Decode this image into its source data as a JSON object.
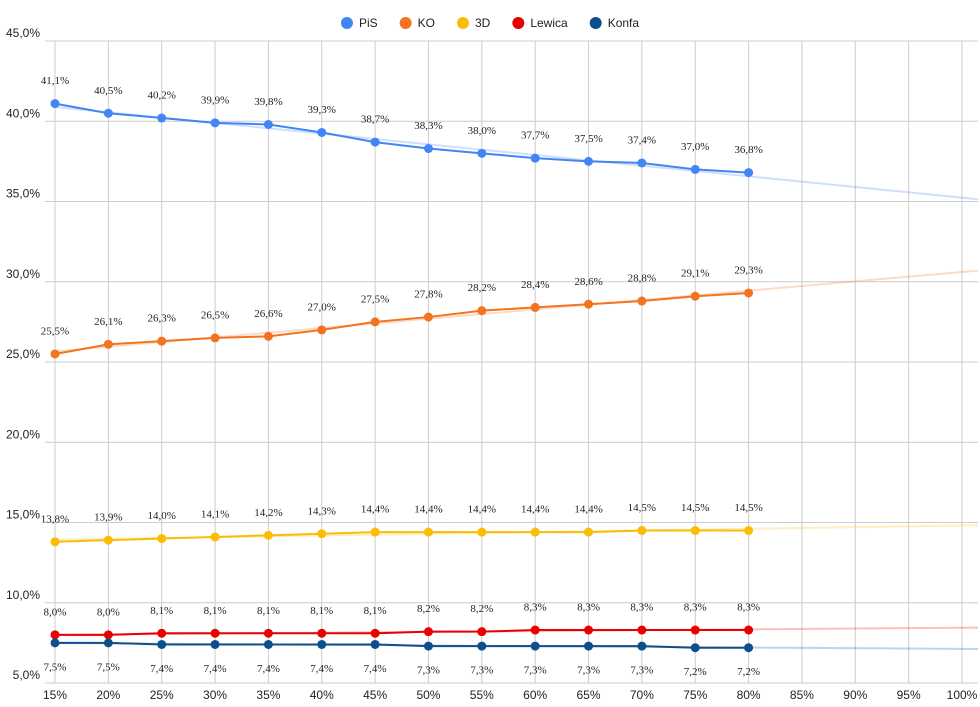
{
  "chart_data": {
    "type": "line",
    "x": [
      15,
      20,
      25,
      30,
      35,
      40,
      45,
      50,
      55,
      60,
      65,
      70,
      75,
      80
    ],
    "xlim": [
      15,
      100
    ],
    "xticks": [
      {
        "value": 15,
        "label": "15%"
      },
      {
        "value": 20,
        "label": "20%"
      },
      {
        "value": 25,
        "label": "25%"
      },
      {
        "value": 30,
        "label": "30%"
      },
      {
        "value": 35,
        "label": "35%"
      },
      {
        "value": 40,
        "label": "40%"
      },
      {
        "value": 45,
        "label": "45%"
      },
      {
        "value": 50,
        "label": "50%"
      },
      {
        "value": 55,
        "label": "55%"
      },
      {
        "value": 60,
        "label": "60%"
      },
      {
        "value": 65,
        "label": "65%"
      },
      {
        "value": 70,
        "label": "70%"
      },
      {
        "value": 75,
        "label": "75%"
      },
      {
        "value": 80,
        "label": "80%"
      },
      {
        "value": 85,
        "label": "85%"
      },
      {
        "value": 90,
        "label": "90%"
      },
      {
        "value": 95,
        "label": "95%"
      },
      {
        "value": 100,
        "label": "100%"
      }
    ],
    "ylim": [
      5,
      45
    ],
    "yticks": [
      {
        "value": 5,
        "label": "5,0%"
      },
      {
        "value": 10,
        "label": "10,0%"
      },
      {
        "value": 15,
        "label": "15,0%"
      },
      {
        "value": 20,
        "label": "20,0%"
      },
      {
        "value": 25,
        "label": "25,0%"
      },
      {
        "value": 30,
        "label": "30,0%"
      },
      {
        "value": 35,
        "label": "35,0%"
      },
      {
        "value": 40,
        "label": "40,0%"
      },
      {
        "value": 45,
        "label": "45,0%"
      }
    ],
    "grid": true,
    "legend": "top",
    "trendline": true,
    "series": [
      {
        "name": "PiS",
        "color": "#4285f4",
        "label_position": "above",
        "values": [
          41.1,
          40.5,
          40.2,
          39.9,
          39.8,
          39.3,
          38.7,
          38.3,
          38.0,
          37.7,
          37.5,
          37.4,
          37.0,
          36.8
        ],
        "value_labels": [
          "41,1%",
          "40,5%",
          "40,2%",
          "39,9%",
          "39,8%",
          "39,3%",
          "38,7%",
          "38,3%",
          "38,0%",
          "37,7%",
          "37,5%",
          "37,4%",
          "37,0%",
          "36,8%"
        ]
      },
      {
        "name": "KO",
        "color": "#f4731e",
        "label_position": "above",
        "values": [
          25.5,
          26.1,
          26.3,
          26.5,
          26.6,
          27.0,
          27.5,
          27.8,
          28.2,
          28.4,
          28.6,
          28.8,
          29.1,
          29.3
        ],
        "value_labels": [
          "25,5%",
          "26,1%",
          "26,3%",
          "26,5%",
          "26,6%",
          "27,0%",
          "27,5%",
          "27,8%",
          "28,2%",
          "28,4%",
          "28,6%",
          "28,8%",
          "29,1%",
          "29,3%"
        ]
      },
      {
        "name": "3D",
        "color": "#fbbc04",
        "label_position": "above",
        "values": [
          13.8,
          13.9,
          14.0,
          14.1,
          14.2,
          14.3,
          14.4,
          14.4,
          14.4,
          14.4,
          14.4,
          14.5,
          14.5,
          14.5
        ],
        "value_labels": [
          "13,8%",
          "13,9%",
          "14,0%",
          "14,1%",
          "14,2%",
          "14,3%",
          "14,4%",
          "14,4%",
          "14,4%",
          "14,4%",
          "14,4%",
          "14,5%",
          "14,5%",
          "14,5%"
        ]
      },
      {
        "name": "Lewica",
        "color": "#ea0000",
        "label_position": "above",
        "values": [
          8.0,
          8.0,
          8.1,
          8.1,
          8.1,
          8.1,
          8.1,
          8.2,
          8.2,
          8.3,
          8.3,
          8.3,
          8.3,
          8.3
        ],
        "value_labels": [
          "8,0%",
          "8,0%",
          "8,1%",
          "8,1%",
          "8,1%",
          "8,1%",
          "8,1%",
          "8,2%",
          "8,2%",
          "8,3%",
          "8,3%",
          "8,3%",
          "8,3%",
          "8,3%"
        ]
      },
      {
        "name": "Konfa",
        "color": "#0d4f8b",
        "label_position": "below",
        "values": [
          7.5,
          7.5,
          7.4,
          7.4,
          7.4,
          7.4,
          7.4,
          7.3,
          7.3,
          7.3,
          7.3,
          7.3,
          7.2,
          7.2
        ],
        "value_labels": [
          "7,5%",
          "7,5%",
          "7,4%",
          "7,4%",
          "7,4%",
          "7,4%",
          "7,4%",
          "7,3%",
          "7,3%",
          "7,3%",
          "7,3%",
          "7,3%",
          "7,2%",
          "7,2%"
        ]
      }
    ]
  }
}
